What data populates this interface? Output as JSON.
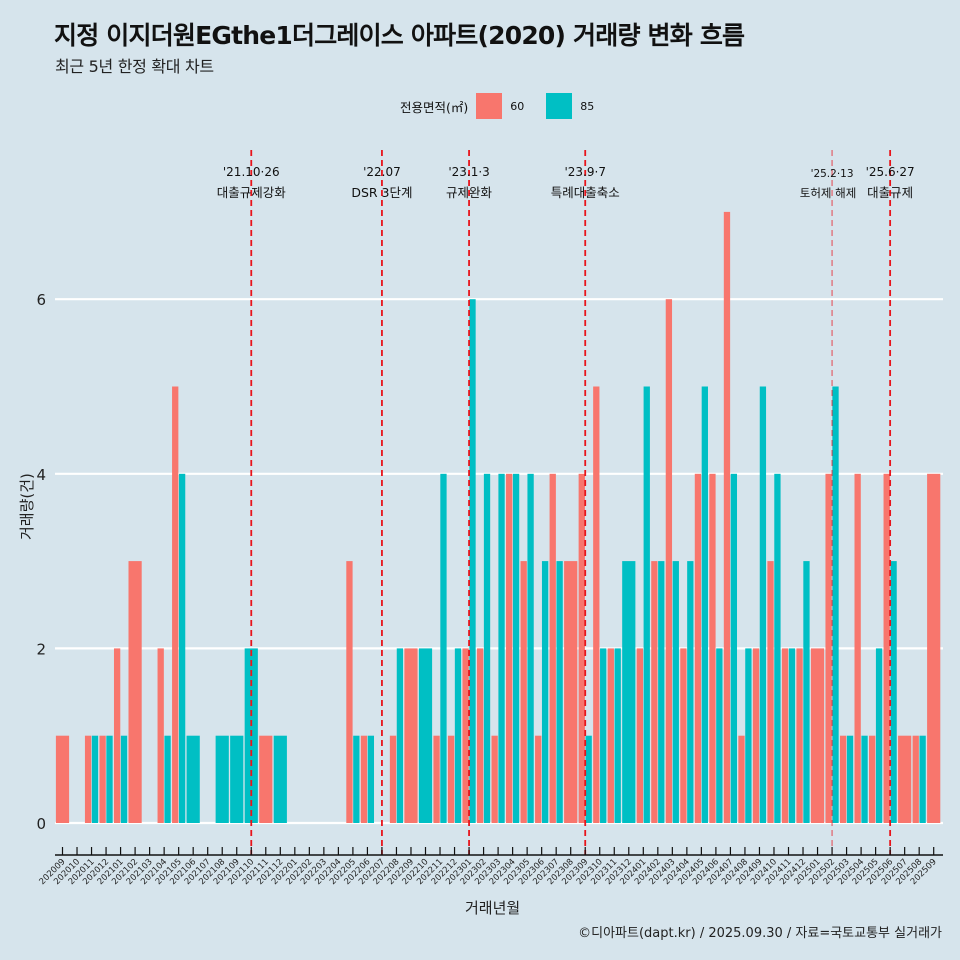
{
  "header": {
    "title": "지정 이지더원EGthe1더그레이스 아파트(2020) 거래량 변화 흐름",
    "subtitle": "최근 5년 한정 확대 차트"
  },
  "legend": {
    "title": "전용면적(㎡)",
    "items": [
      {
        "label": "60",
        "color": "#F8766D"
      },
      {
        "label": "85",
        "color": "#00BFC4"
      }
    ]
  },
  "footer": {
    "caption": "©디아파트(dapt.kr) / 2025.09.30 / 자료=국토교통부 실거래가"
  },
  "chart_data": {
    "type": "bar",
    "title": "지정 이지더원EGthe1더그레이스 아파트(2020) 거래량 변화 흐름",
    "subtitle": "최근 5년 한정 확대 차트",
    "xlabel": "거래년월",
    "ylabel": "거래량(건)",
    "ylim": [
      0,
      7.4
    ],
    "yticks": [
      0,
      2,
      4,
      6
    ],
    "grid": "horizontal major",
    "legend_position": "top",
    "categories": [
      "202009",
      "202010",
      "202011",
      "202012",
      "202101",
      "202102",
      "202103",
      "202104",
      "202105",
      "202106",
      "202107",
      "202108",
      "202109",
      "202110",
      "202111",
      "202112",
      "202201",
      "202202",
      "202203",
      "202204",
      "202205",
      "202206",
      "202207",
      "202208",
      "202209",
      "202210",
      "202211",
      "202212",
      "202301",
      "202302",
      "202303",
      "202304",
      "202305",
      "202306",
      "202307",
      "202308",
      "202309",
      "202310",
      "202311",
      "202312",
      "202401",
      "202402",
      "202403",
      "202404",
      "202405",
      "202406",
      "202407",
      "202408",
      "202409",
      "202410",
      "202411",
      "202412",
      "202501",
      "202502",
      "202503",
      "202504",
      "202505",
      "202506",
      "202507",
      "202508",
      "202509"
    ],
    "series": [
      {
        "name": "60",
        "color": "#F8766D",
        "values": [
          1,
          0,
          1,
          1,
          2,
          3,
          0,
          2,
          5,
          0,
          0,
          0,
          0,
          0,
          1,
          0,
          0,
          0,
          0,
          0,
          3,
          1,
          0,
          1,
          2,
          0,
          1,
          1,
          2,
          2,
          1,
          4,
          3,
          1,
          4,
          3,
          4,
          5,
          2,
          0,
          2,
          3,
          6,
          2,
          4,
          4,
          7,
          1,
          2,
          3,
          2,
          2,
          2,
          4,
          1,
          4,
          1,
          4,
          1,
          1,
          4
        ]
      },
      {
        "name": "85",
        "color": "#00BFC4",
        "values": [
          0,
          0,
          1,
          1,
          1,
          0,
          0,
          1,
          4,
          1,
          0,
          1,
          1,
          2,
          0,
          1,
          0,
          0,
          0,
          0,
          1,
          1,
          0,
          2,
          0,
          2,
          4,
          2,
          6,
          4,
          4,
          4,
          4,
          3,
          3,
          0,
          1,
          2,
          2,
          3,
          5,
          3,
          3,
          3,
          5,
          2,
          4,
          2,
          5,
          4,
          2,
          3,
          0,
          5,
          1,
          1,
          2,
          3,
          0,
          1,
          0
        ]
      }
    ],
    "events": [
      {
        "month": "202110",
        "date": "'21.10·26",
        "label": "대출규제강화",
        "style": "bold"
      },
      {
        "month": "202207",
        "date": "'22.07",
        "label": "DSR 3단계",
        "style": "bold"
      },
      {
        "month": "202301",
        "date": "'23.1·3",
        "label": "규제완화",
        "style": "bold"
      },
      {
        "month": "202309",
        "date": "'23.9·7",
        "label": "특례대출축소",
        "style": "bold"
      },
      {
        "month": "202502",
        "date": "'25.2·13",
        "label": "토허제 해제",
        "style": "light"
      },
      {
        "month": "202506",
        "date": "'25.6·27",
        "label": "대출규제",
        "style": "bold"
      }
    ],
    "event_line_color": "#E8141B"
  }
}
